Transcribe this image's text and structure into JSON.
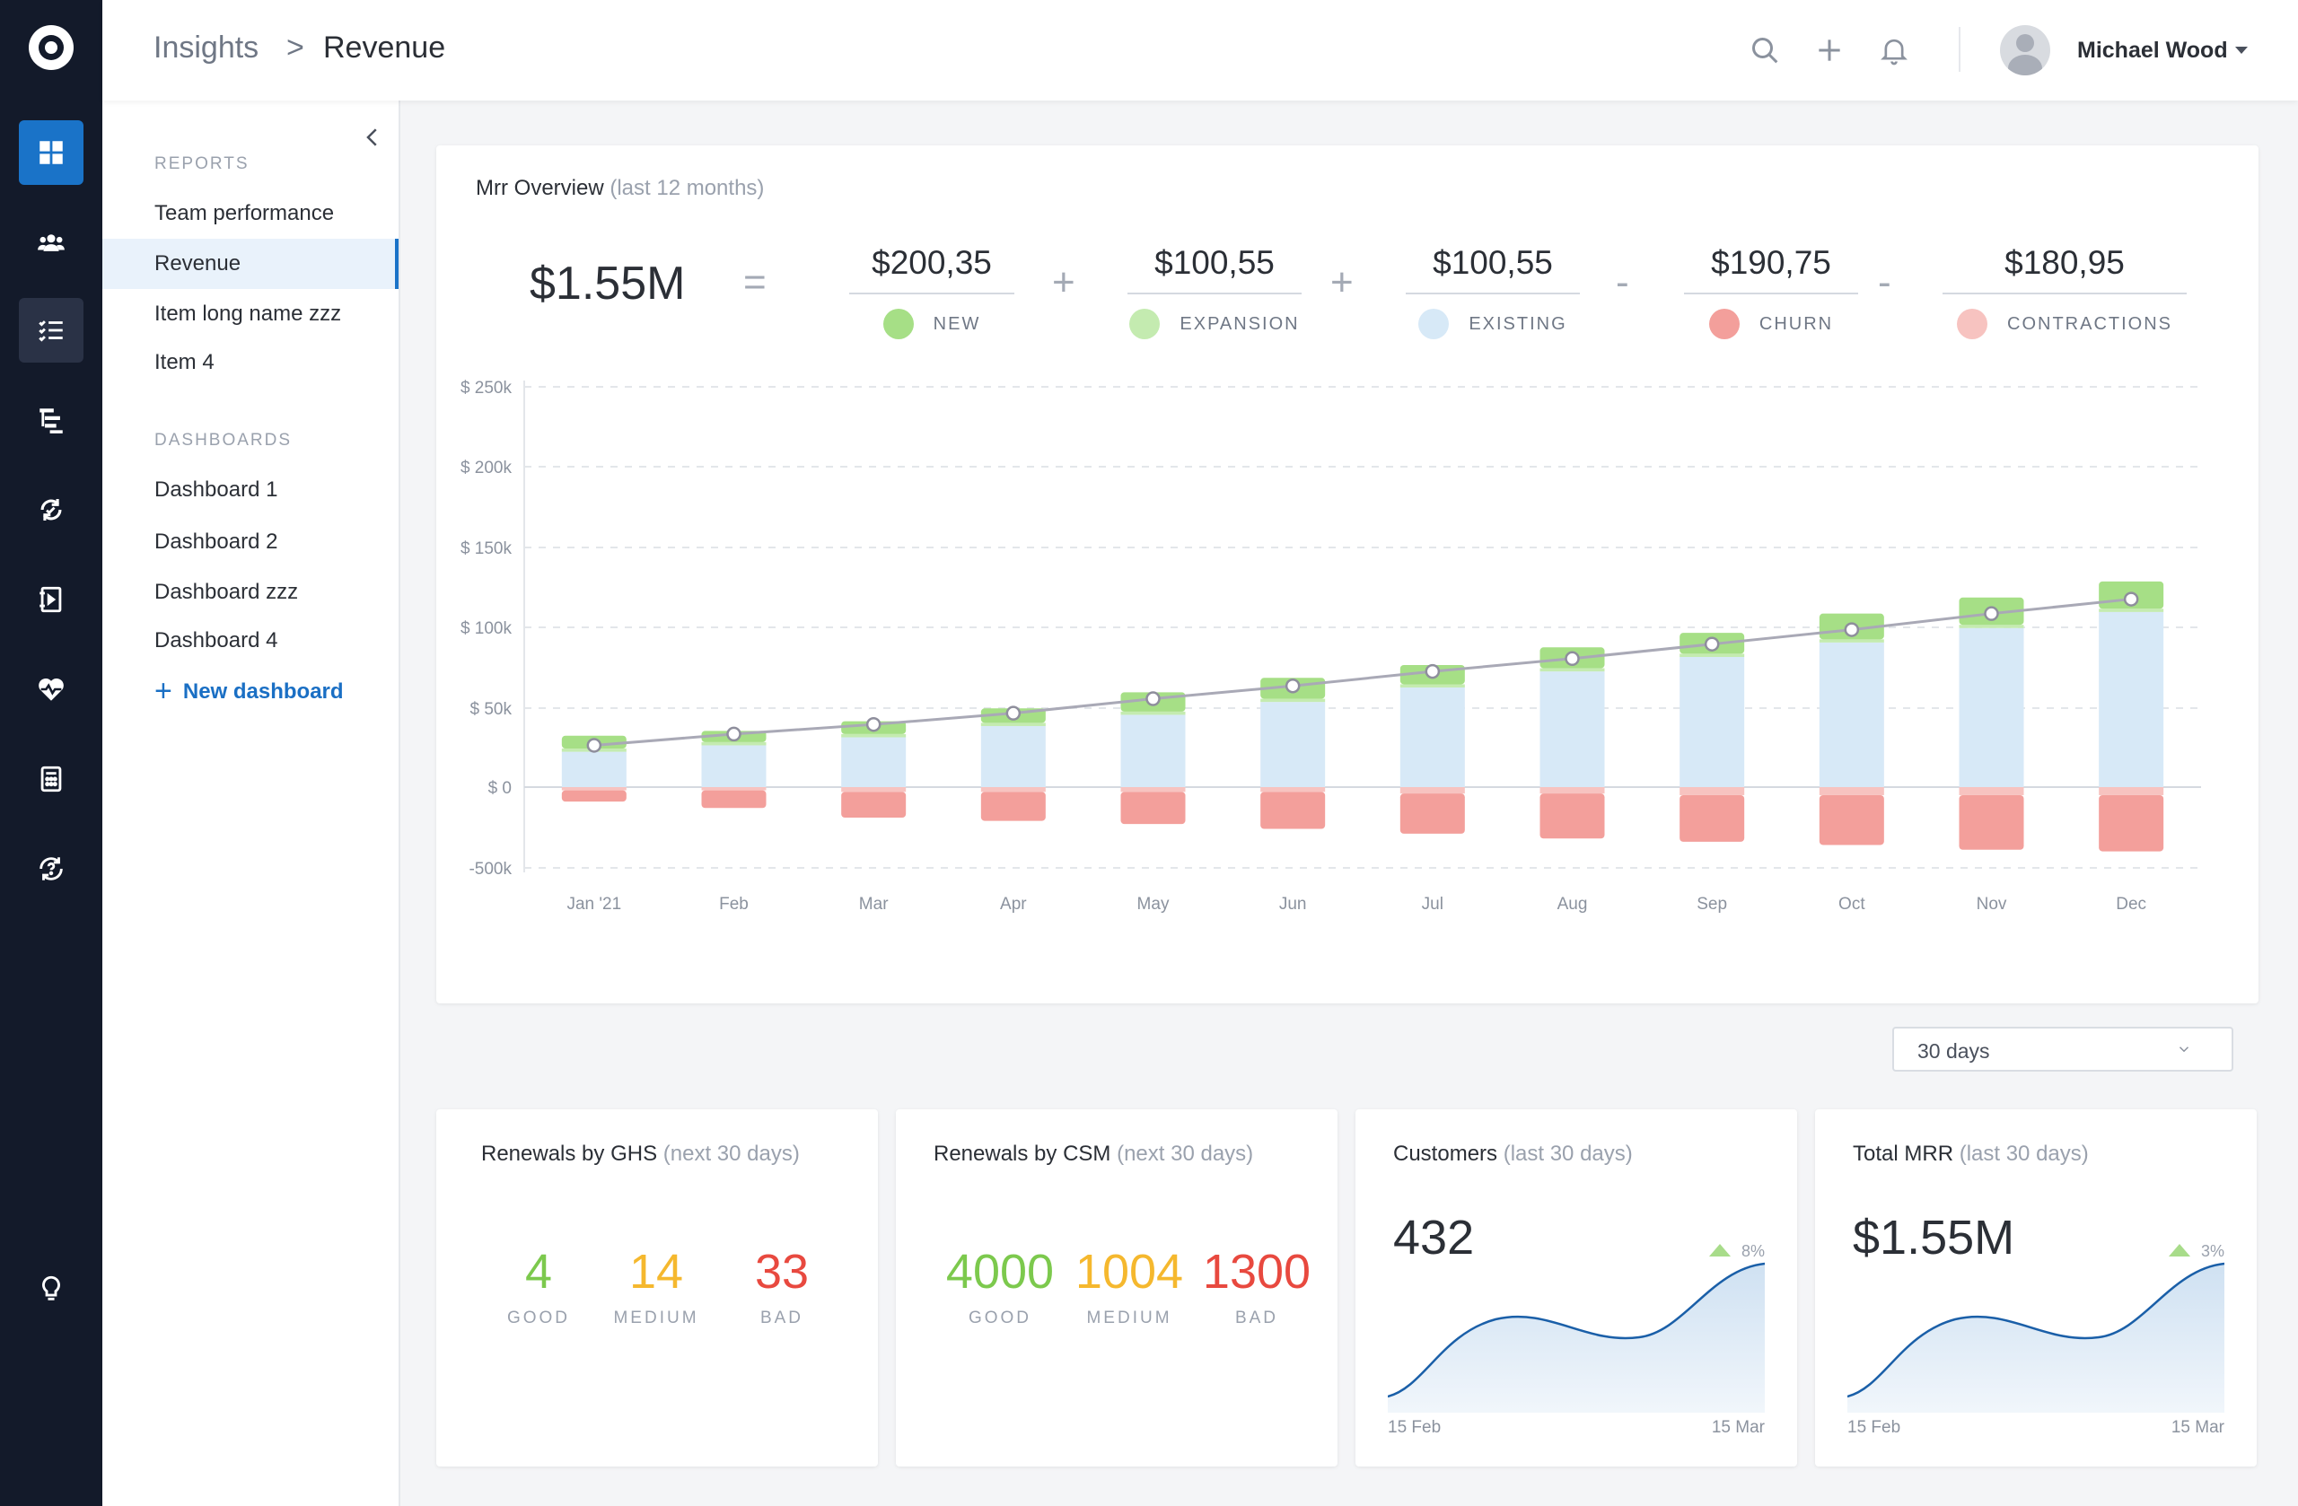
{
  "topbar": {
    "breadcrumb": [
      "Insights",
      "Revenue"
    ],
    "breadcrumb_separator": ">",
    "user_name": "Michael Wood"
  },
  "sidebar": {
    "reports_title": "REPORTS",
    "reports": [
      "Team performance",
      "Revenue",
      "Item long name zzz",
      "Item 4"
    ],
    "active_item": "Revenue",
    "dashboards_title": "DASHBOARDS",
    "dashboards": [
      "Dashboard 1",
      "Dashboard 2",
      "Dashboard zzz",
      "Dashboard 4"
    ],
    "new_dashboard": "New dashboard"
  },
  "mrr": {
    "title": "Mrr Overview",
    "title_sub": "(last 12 months)",
    "total": "$1.55M",
    "operators": [
      "=",
      "+",
      "+",
      "-",
      "-"
    ],
    "components": [
      {
        "value": "$200,35",
        "label": "NEW",
        "color": "#a6df86"
      },
      {
        "value": "$100,55",
        "label": "EXPANSION",
        "color": "#c4ebb0"
      },
      {
        "value": "$100,55",
        "label": "EXISTING",
        "color": "#d7e9f7"
      },
      {
        "value": "$190,75",
        "label": "CHURN",
        "color": "#f39f9b"
      },
      {
        "value": "$180,95",
        "label": "CONTRACTIONS",
        "color": "#f7c3c0"
      }
    ]
  },
  "chart_data": {
    "type": "bar",
    "stacked": true,
    "categories": [
      "Jan '21",
      "Feb",
      "Mar",
      "Apr",
      "May",
      "Jun",
      "Jul",
      "Aug",
      "Sep",
      "Oct",
      "Nov",
      "Dec"
    ],
    "yticks": [
      "$ 250k",
      "$ 200k",
      "$ 150k",
      "$ 100k",
      "$ 50k",
      "$ 0",
      "-500k"
    ],
    "ylim": [
      -60,
      250
    ],
    "grid": true,
    "series": [
      {
        "name": "EXISTING",
        "color": "#d7e9f7",
        "values": [
          22,
          26,
          31,
          38,
          45,
          53,
          62,
          72,
          81,
          90,
          99,
          109
        ]
      },
      {
        "name": "EXPANSION",
        "color": "#c4ebb0",
        "values": [
          2,
          2,
          2,
          2,
          2,
          2,
          2,
          2,
          2,
          2,
          2,
          2
        ]
      },
      {
        "name": "NEW",
        "color": "#a6df86",
        "values": [
          8,
          7,
          8,
          9,
          12,
          13,
          12,
          13,
          13,
          16,
          17,
          17
        ]
      },
      {
        "name": "CONTRACTIONS",
        "color": "#f7c3c0",
        "values": [
          -2,
          -2,
          -3,
          -3,
          -3,
          -3,
          -4,
          -4,
          -5,
          -5,
          -5,
          -5
        ]
      },
      {
        "name": "CHURN",
        "color": "#f39f9b",
        "values": [
          -7,
          -11,
          -16,
          -18,
          -20,
          -23,
          -25,
          -28,
          -29,
          -31,
          -34,
          -35
        ]
      }
    ],
    "line": {
      "name": "MRR",
      "color": "#a9a9b6",
      "values": [
        26,
        33,
        39,
        46,
        55,
        63,
        72,
        80,
        89,
        98,
        108,
        117
      ]
    }
  },
  "filter": {
    "selected": "30 days"
  },
  "renewals_ghs": {
    "title": "Renewals by GHS",
    "title_sub": "(next 30 days)",
    "stats": [
      {
        "value": "4",
        "label": "GOOD",
        "color": "#7cc94d"
      },
      {
        "value": "14",
        "label": "MEDIUM",
        "color": "#f5b82e"
      },
      {
        "value": "33",
        "label": "BAD",
        "color": "#e8493f"
      }
    ]
  },
  "renewals_csm": {
    "title": "Renewals by CSM",
    "title_sub": "(next 30 days)",
    "stats": [
      {
        "value": "4000",
        "label": "GOOD",
        "color": "#7cc94d"
      },
      {
        "value": "1004",
        "label": "MEDIUM",
        "color": "#f5b82e"
      },
      {
        "value": "1300",
        "label": "BAD",
        "color": "#e8493f"
      }
    ]
  },
  "customers": {
    "title": "Customers",
    "title_sub": "(last 30 days)",
    "value": "432",
    "trend": "8%",
    "date_start": "15 Feb",
    "date_end": "15 Mar"
  },
  "total_mrr": {
    "title": "Total MRR",
    "title_sub": "(last 30 days)",
    "value": "$1.55M",
    "trend": "3%",
    "date_start": "15 Feb",
    "date_end": "15 Mar"
  }
}
